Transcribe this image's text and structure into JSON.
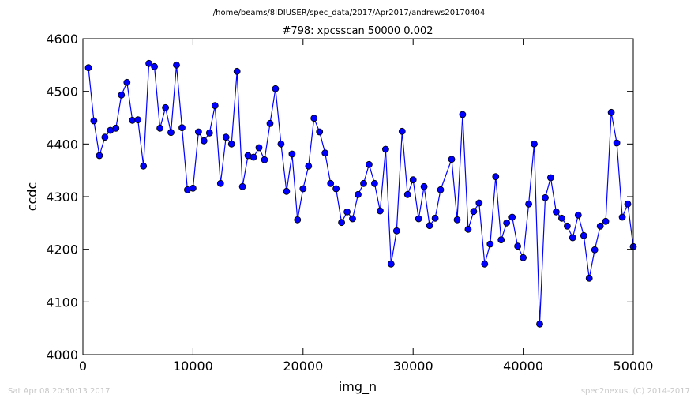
{
  "chart_data": {
    "type": "line",
    "suptitle": "/home/beams/8IDIUSER/spec_data/2017/Apr2017/andrews20170404",
    "title": "#798: xpcsscan 50000 0.002",
    "xlabel": "img_n",
    "ylabel": "ccdc",
    "xlim": [
      0,
      50000
    ],
    "ylim": [
      4000,
      4600
    ],
    "xticks": [
      0,
      10000,
      20000,
      30000,
      40000,
      50000
    ],
    "yticks": [
      4000,
      4100,
      4200,
      4300,
      4400,
      4500,
      4600
    ],
    "grid": false,
    "series": [
      {
        "color": "#0000ff",
        "marker": "circle",
        "x": [
          500,
          1000,
          1500,
          2000,
          2500,
          3000,
          3500,
          4000,
          4500,
          5000,
          5500,
          6000,
          6500,
          7000,
          7500,
          8000,
          8500,
          9000,
          9500,
          10000,
          10500,
          11000,
          11500,
          12000,
          12500,
          13000,
          13500,
          14000,
          14500,
          15000,
          15500,
          16000,
          16500,
          17000,
          17500,
          18000,
          18500,
          19000,
          19500,
          20000,
          20500,
          21000,
          21500,
          22000,
          22500,
          23000,
          23500,
          24000,
          24500,
          25000,
          25500,
          26000,
          26500,
          27000,
          27500,
          28000,
          28500,
          29000,
          29500,
          30000,
          30500,
          31000,
          31500,
          32000,
          32500,
          33500,
          34000,
          34500,
          35000,
          35500,
          36000,
          36500,
          37000,
          37500,
          38000,
          38500,
          39000,
          39500,
          40000,
          40500,
          41000,
          41500,
          42000,
          42500,
          43000,
          43500,
          44000,
          44500,
          45000,
          45500,
          46000,
          46500,
          47000,
          47500,
          48000,
          48500,
          49000,
          49500,
          50000
        ],
        "y": [
          4545,
          4444,
          4378,
          4413,
          4426,
          4430,
          4493,
          4517,
          4445,
          4446,
          4358,
          4553,
          4547,
          4430,
          4469,
          4422,
          4550,
          4431,
          4313,
          4316,
          4423,
          4406,
          4421,
          4473,
          4325,
          4413,
          4400,
          4538,
          4319,
          4378,
          4375,
          4393,
          4370,
          4439,
          4505,
          4400,
          4310,
          4381,
          4256,
          4315,
          4358,
          4449,
          4423,
          4383,
          4325,
          4315,
          4251,
          4271,
          4258,
          4304,
          4325,
          4361,
          4325,
          4273,
          4390,
          4172,
          4235,
          4424,
          4304,
          4332,
          4258,
          4319,
          4245,
          4259,
          4313,
          4371,
          4256,
          4456,
          4238,
          4272,
          4288,
          4172,
          4210,
          4338,
          4218,
          4250,
          4261,
          4206,
          4184,
          4286,
          4400,
          4058,
          4298,
          4336,
          4271,
          4259,
          4244,
          4222,
          4265,
          4226,
          4145,
          4199,
          4244,
          4253,
          4460,
          4402,
          4261,
          4286,
          4205
        ]
      }
    ]
  },
  "footer": {
    "left": "Sat Apr 08 20:50:13 2017",
    "right": "spec2nexus, (C) 2014-2017"
  }
}
